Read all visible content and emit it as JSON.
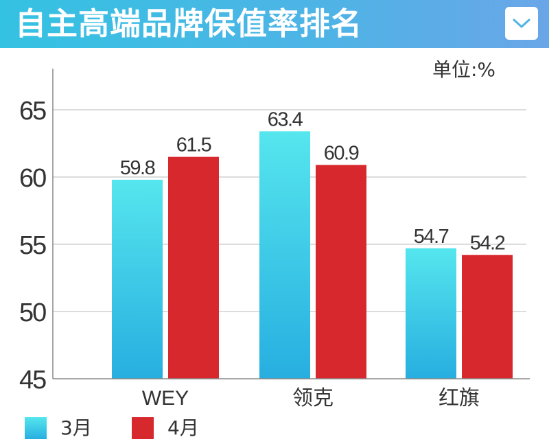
{
  "header": {
    "title": "自主高端品牌保值率排名"
  },
  "unit_label": "单位:%",
  "colors": {
    "march_top": "#55e6ee",
    "march_bottom": "#27aee0",
    "april": "#d7282e",
    "header": "#4fb3e6"
  },
  "chart_data": {
    "type": "bar",
    "title": "自主高端品牌保值率排名",
    "xlabel": "",
    "ylabel": "",
    "unit": "单位:%",
    "categories": [
      "WEY",
      "领克",
      "红旗"
    ],
    "series": [
      {
        "name": "3月",
        "values": [
          59.8,
          63.4,
          54.7
        ],
        "value_labels": [
          "59.8",
          "63.4",
          "54.7"
        ]
      },
      {
        "name": "4月",
        "values": [
          61.5,
          60.9,
          54.2
        ],
        "value_labels": [
          "61.5",
          "60.9",
          "54.2"
        ]
      }
    ],
    "ylim": [
      45,
      68
    ],
    "yticks": [
      "45",
      "50",
      "55",
      "60",
      "65"
    ],
    "grid": true,
    "legend": "bottom-left"
  }
}
